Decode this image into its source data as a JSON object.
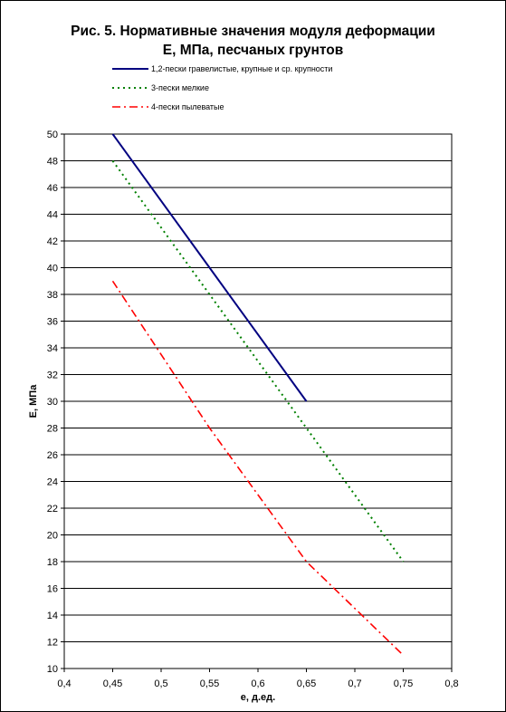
{
  "chart_data": {
    "type": "line",
    "title": "Рис. 5. Нормативные значения модуля деформации",
    "subtitle": "Е, МПа, песчаных грунтов",
    "xlabel": "e, д.ед.",
    "ylabel": "Е, МПа",
    "xlim": [
      0.4,
      0.8
    ],
    "ylim": [
      10,
      50
    ],
    "x_ticks": [
      "0,4",
      "0,45",
      "0,5",
      "0,55",
      "0,6",
      "0,65",
      "0,7",
      "0,75",
      "0,8"
    ],
    "y_ticks": [
      "10",
      "12",
      "14",
      "16",
      "18",
      "20",
      "22",
      "24",
      "26",
      "28",
      "30",
      "32",
      "34",
      "36",
      "38",
      "40",
      "42",
      "44",
      "46",
      "48",
      "50"
    ],
    "grid": "horizontal",
    "legend_position": "top-left",
    "series": [
      {
        "name": "1,2-пески гравелистые, крупные и ср. крупности",
        "color": "#000080",
        "dash": "solid",
        "x": [
          0.45,
          0.55,
          0.65
        ],
        "y": [
          50,
          40,
          30
        ]
      },
      {
        "name": "3-пески мелкие",
        "color": "#008000",
        "dash": "dotted",
        "x": [
          0.45,
          0.55,
          0.65,
          0.75
        ],
        "y": [
          48,
          38,
          28,
          18
        ]
      },
      {
        "name": "4-пески пылеватые",
        "color": "#ff0000",
        "dash": "dashdot",
        "x": [
          0.45,
          0.55,
          0.65,
          0.75
        ],
        "y": [
          39,
          28,
          18,
          11
        ]
      }
    ]
  }
}
